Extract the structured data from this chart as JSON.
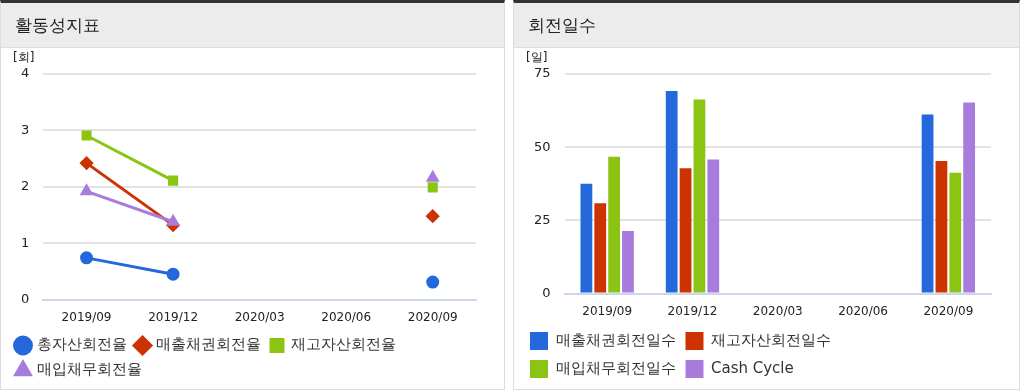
{
  "chart_data": [
    {
      "type": "line",
      "title": "활동성지표",
      "ylabel": "[회]",
      "categories": [
        "2019/09",
        "2019/12",
        "2020/03",
        "2020/06",
        "2020/09"
      ],
      "ylim": [
        0,
        4
      ],
      "yticks": [
        0,
        1,
        2,
        3,
        4
      ],
      "grid": "y",
      "legend": "bottom",
      "line_style": "solid",
      "series": [
        {
          "name": "총자산회전율",
          "color": "#2468dc",
          "marker": "circle",
          "values": [
            0.74,
            0.45,
            null,
            null,
            0.31
          ]
        },
        {
          "name": "매출채권회전율",
          "color": "#cc3300",
          "marker": "diamond",
          "values": [
            2.42,
            1.32,
            null,
            null,
            1.48
          ]
        },
        {
          "name": "재고자산회전율",
          "color": "#8cc414",
          "marker": "square",
          "values": [
            2.91,
            2.11,
            null,
            null,
            1.99
          ]
        },
        {
          "name": "매입채무회전율",
          "color": "#a87cdc",
          "marker": "triangle",
          "values": [
            1.92,
            1.38,
            null,
            null,
            2.16
          ]
        }
      ]
    },
    {
      "type": "bar",
      "title": "회전일수",
      "ylabel": "[일]",
      "categories": [
        "2019/09",
        "2019/12",
        "2020/03",
        "2020/06",
        "2020/09"
      ],
      "ylim": [
        0,
        75
      ],
      "yticks": [
        0,
        25,
        50,
        75
      ],
      "grid": "y",
      "legend": "bottom",
      "series": [
        {
          "name": "매출채권회전일수",
          "color": "#2468dc",
          "values": [
            37.5,
            69.2,
            null,
            null,
            61.2
          ]
        },
        {
          "name": "재고자산회전일수",
          "color": "#cc3300",
          "values": [
            30.9,
            42.8,
            null,
            null,
            45.3
          ]
        },
        {
          "name": "매입채무회전일수",
          "color": "#8cc414",
          "values": [
            46.7,
            66.3,
            null,
            null,
            41.3
          ]
        },
        {
          "name": "Cash Cycle",
          "color": "#a87cdc",
          "values": [
            21.4,
            45.8,
            null,
            null,
            65.3
          ]
        }
      ]
    }
  ]
}
